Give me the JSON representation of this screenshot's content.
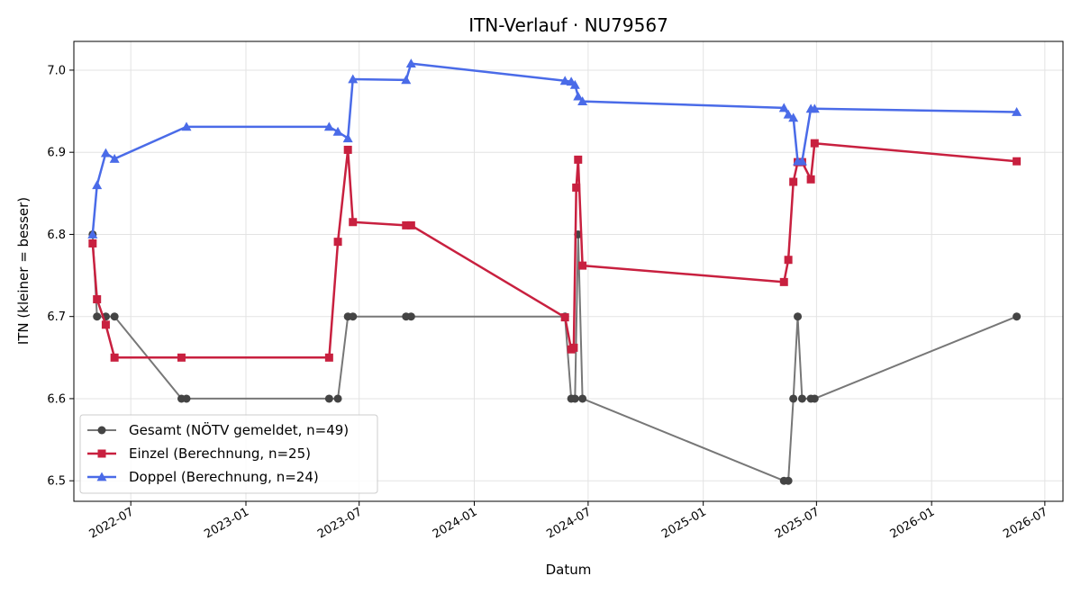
{
  "chart_data": {
    "type": "line",
    "title": "ITN-Verlauf · NU79567",
    "xlabel": "Datum",
    "ylabel": "ITN  (kleiner = besser)",
    "xlim": [
      "2022-04-01",
      "2026-07-30"
    ],
    "ylim": [
      6.475,
      7.035
    ],
    "x_ticks": [
      "2022-07-01",
      "2023-01-01",
      "2023-07-01",
      "2024-01-01",
      "2024-07-01",
      "2025-01-01",
      "2025-07-01",
      "2026-01-01",
      "2026-07-01"
    ],
    "x_tick_labels": [
      "2022-07",
      "2023-01",
      "2023-07",
      "2024-01",
      "2024-07",
      "2025-01",
      "2025-07",
      "2026-01",
      "2026-07"
    ],
    "y_ticks": [
      6.5,
      6.6,
      6.7,
      6.8,
      6.9,
      7.0
    ],
    "y_tick_labels": [
      "6.5",
      "6.6",
      "6.7",
      "6.8",
      "6.9",
      "7.0"
    ],
    "grid": true,
    "legend_position": "lower-left",
    "series": [
      {
        "name": "Gesamt (NÖTV gemeldet, n=49)",
        "color": "#777777",
        "marker_color": "#444444",
        "marker": "circle",
        "points": [
          [
            "2022-05-01",
            6.8
          ],
          [
            "2022-05-08",
            6.7
          ],
          [
            "2022-05-22",
            6.7
          ],
          [
            "2022-06-05",
            6.7
          ],
          [
            "2022-09-20",
            6.6
          ],
          [
            "2022-09-28",
            6.6
          ],
          [
            "2023-05-14",
            6.6
          ],
          [
            "2023-05-28",
            6.6
          ],
          [
            "2023-06-13",
            6.7
          ],
          [
            "2023-06-21",
            6.7
          ],
          [
            "2023-09-14",
            6.7
          ],
          [
            "2023-09-22",
            6.7
          ],
          [
            "2024-05-25",
            6.7
          ],
          [
            "2024-06-04",
            6.6
          ],
          [
            "2024-06-10",
            6.6
          ],
          [
            "2024-06-15",
            6.8
          ],
          [
            "2024-06-22",
            6.6
          ],
          [
            "2025-05-10",
            6.5
          ],
          [
            "2025-05-17",
            6.5
          ],
          [
            "2025-05-25",
            6.6
          ],
          [
            "2025-06-01",
            6.7
          ],
          [
            "2025-06-08",
            6.6
          ],
          [
            "2025-06-22",
            6.6
          ],
          [
            "2025-06-28",
            6.6
          ],
          [
            "2026-05-17",
            6.7
          ]
        ]
      },
      {
        "name": "Einzel (Berechnung, n=25)",
        "color": "#c8203f",
        "marker_color": "#c8203f",
        "marker": "square",
        "points": [
          [
            "2022-05-01",
            6.789
          ],
          [
            "2022-05-08",
            6.721
          ],
          [
            "2022-05-22",
            6.69
          ],
          [
            "2022-06-05",
            6.65
          ],
          [
            "2022-09-20",
            6.65
          ],
          [
            "2023-05-14",
            6.65
          ],
          [
            "2023-05-28",
            6.791
          ],
          [
            "2023-06-13",
            6.903
          ],
          [
            "2023-06-21",
            6.815
          ],
          [
            "2023-09-14",
            6.811
          ],
          [
            "2023-09-22",
            6.811
          ],
          [
            "2024-05-25",
            6.699
          ],
          [
            "2024-06-04",
            6.66
          ],
          [
            "2024-06-08",
            6.662
          ],
          [
            "2024-06-12",
            6.857
          ],
          [
            "2024-06-15",
            6.891
          ],
          [
            "2024-06-22",
            6.762
          ],
          [
            "2025-05-10",
            6.742
          ],
          [
            "2025-05-17",
            6.769
          ],
          [
            "2025-05-25",
            6.864
          ],
          [
            "2025-06-01",
            6.888
          ],
          [
            "2025-06-08",
            6.888
          ],
          [
            "2025-06-22",
            6.867
          ],
          [
            "2025-06-28",
            6.911
          ],
          [
            "2026-05-17",
            6.889
          ]
        ]
      },
      {
        "name": "Doppel (Berechnung, n=24)",
        "color": "#4a6be8",
        "marker_color": "#4a6be8",
        "marker": "triangle",
        "points": [
          [
            "2022-05-01",
            6.8
          ],
          [
            "2022-05-08",
            6.86
          ],
          [
            "2022-05-22",
            6.899
          ],
          [
            "2022-06-05",
            6.892
          ],
          [
            "2022-09-28",
            6.931
          ],
          [
            "2023-05-14",
            6.931
          ],
          [
            "2023-05-28",
            6.925
          ],
          [
            "2023-06-13",
            6.917
          ],
          [
            "2023-06-21",
            6.989
          ],
          [
            "2023-09-14",
            6.988
          ],
          [
            "2023-09-22",
            7.008
          ],
          [
            "2024-05-25",
            6.987
          ],
          [
            "2024-06-04",
            6.986
          ],
          [
            "2024-06-10",
            6.982
          ],
          [
            "2024-06-15",
            6.968
          ],
          [
            "2024-06-22",
            6.962
          ],
          [
            "2025-05-10",
            6.954
          ],
          [
            "2025-05-17",
            6.946
          ],
          [
            "2025-05-25",
            6.942
          ],
          [
            "2025-06-01",
            6.889
          ],
          [
            "2025-06-08",
            6.889
          ],
          [
            "2025-06-22",
            6.953
          ],
          [
            "2025-06-28",
            6.953
          ],
          [
            "2026-05-17",
            6.949
          ]
        ]
      }
    ]
  }
}
